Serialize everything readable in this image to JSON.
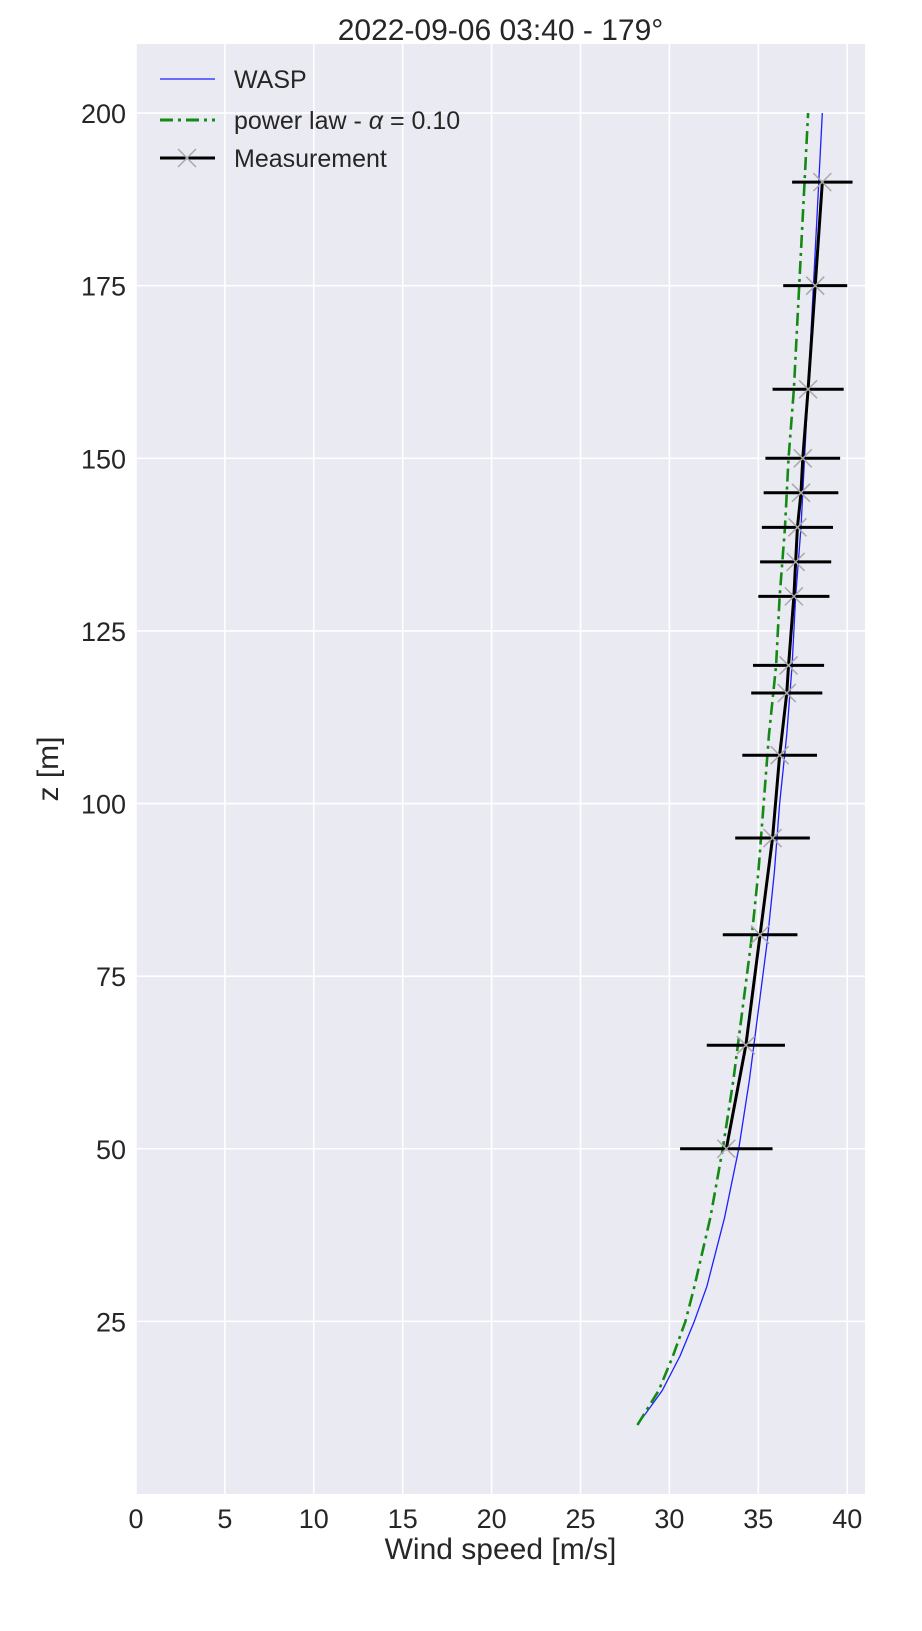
{
  "chart_data": {
    "type": "line",
    "title": "2022-09-06 03:40 - 179°",
    "xlabel": "Wind speed [m/s]",
    "ylabel": "z [m]",
    "xlim": [
      0,
      41
    ],
    "ylim": [
      0,
      210
    ],
    "xticks": [
      0,
      5,
      10,
      15,
      20,
      25,
      30,
      35,
      40
    ],
    "yticks": [
      25,
      50,
      75,
      100,
      125,
      150,
      175,
      200
    ],
    "grid": true,
    "legend_position": "top-left",
    "colors": {
      "background": "#eaeaf2",
      "grid": "#ffffff",
      "wasp": "#1f1fff",
      "power_law": "#138a13",
      "measurement": "#000000",
      "marker": "#a9a9a9"
    },
    "series": [
      {
        "name": "WASP",
        "style": "solid-thin",
        "z": [
          10,
          15,
          20,
          25,
          30,
          40,
          50,
          60,
          70,
          80,
          90,
          100,
          110,
          120,
          130,
          140,
          150,
          160,
          170,
          180,
          190,
          200
        ],
        "speed": [
          28.2,
          29.6,
          30.6,
          31.4,
          32.1,
          33.1,
          33.9,
          34.5,
          35.0,
          35.5,
          35.9,
          36.2,
          36.6,
          36.9,
          37.1,
          37.4,
          37.6,
          37.8,
          38.0,
          38.2,
          38.4,
          38.6
        ]
      },
      {
        "name": "power law - α = 0.10",
        "legend_prefix": "power law - ",
        "legend_alpha_symbol": "α",
        "legend_alpha_value": " = 0.10",
        "style": "dash-dot",
        "alpha": 0.1,
        "z": [
          10,
          15,
          20,
          25,
          30,
          40,
          50,
          60,
          70,
          80,
          90,
          100,
          110,
          120,
          130,
          140,
          150,
          160,
          170,
          180,
          190,
          200
        ],
        "speed": [
          28.2,
          29.4,
          30.2,
          30.9,
          31.4,
          32.3,
          33.0,
          33.6,
          34.1,
          34.6,
          35.0,
          35.3,
          35.6,
          36.0,
          36.2,
          36.5,
          36.7,
          37.0,
          37.2,
          37.4,
          37.6,
          37.8
        ]
      },
      {
        "name": "Measurement",
        "style": "solid-thick-with-x-markers",
        "z": [
          50,
          65,
          81,
          95,
          107,
          116,
          120,
          130,
          135,
          140,
          145,
          150,
          160,
          175,
          190
        ],
        "speed": [
          33.2,
          34.3,
          35.1,
          35.8,
          36.2,
          36.6,
          36.7,
          37.0,
          37.1,
          37.2,
          37.4,
          37.5,
          37.8,
          38.2,
          38.6
        ],
        "error": [
          2.6,
          2.2,
          2.1,
          2.1,
          2.1,
          2.0,
          2.0,
          2.0,
          2.0,
          2.0,
          2.1,
          2.1,
          2.0,
          1.8,
          1.7
        ]
      }
    ]
  }
}
